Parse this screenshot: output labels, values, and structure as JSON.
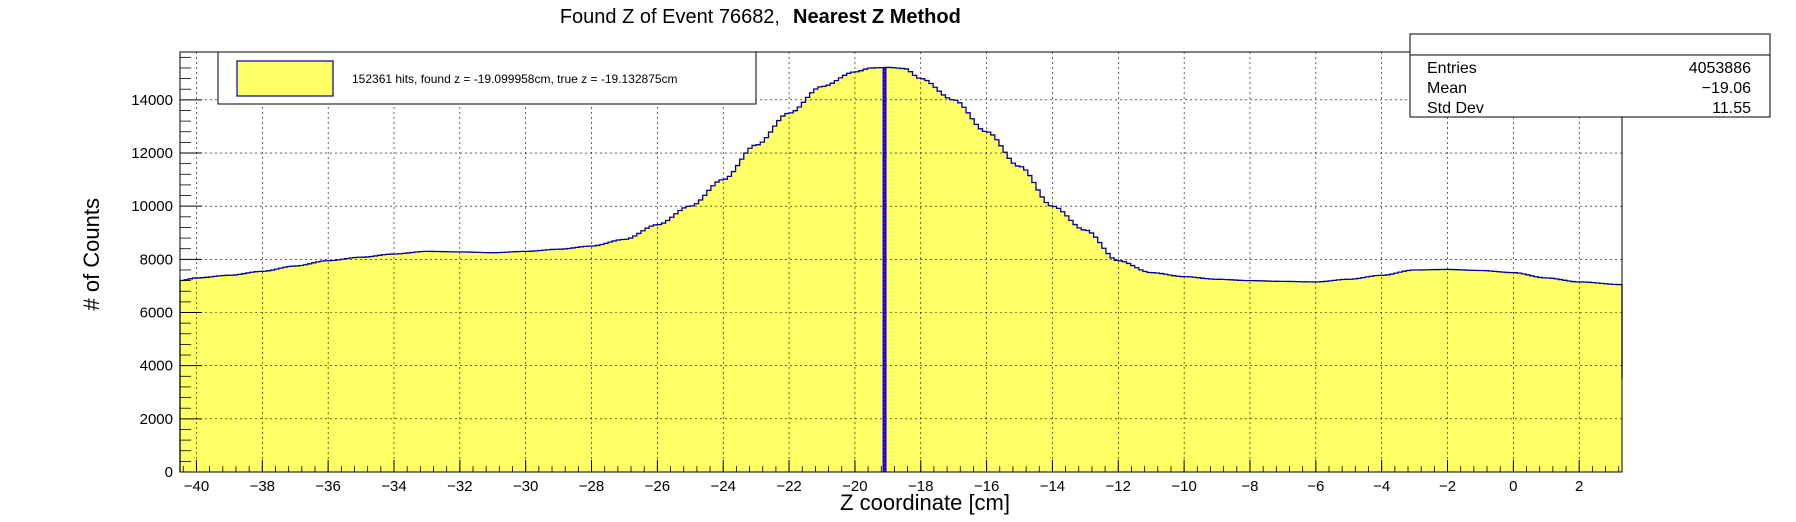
{
  "colors": {
    "fill": "#ffff66",
    "outline": "#000099",
    "marker": "#0000ff",
    "marker_inner": "#ff0000",
    "grid": "#000000"
  },
  "chart_data": {
    "type": "area",
    "title": "Found Z of Event 76682,",
    "title_bold": "Nearest Z Method",
    "xlabel": "Z coordinate [cm]",
    "ylabel": "# of Counts",
    "xlim": [
      -40.5,
      3.3
    ],
    "ylim": [
      0,
      15800
    ],
    "grid": true,
    "xticks": [
      -40,
      -38,
      -36,
      -34,
      -32,
      -30,
      -28,
      -26,
      -24,
      -22,
      -20,
      -18,
      -16,
      -14,
      -12,
      -10,
      -8,
      -6,
      -4,
      -2,
      0,
      2
    ],
    "yticks": [
      0,
      2000,
      4000,
      6000,
      8000,
      10000,
      12000,
      14000
    ],
    "marker_line_z": -19.1,
    "legend": {
      "placement": "top-left",
      "entry": "152361 hits, found z = -19.099958cm, true z = -19.132875cm"
    },
    "stats": {
      "entries_label": "Entries",
      "entries": "4053886",
      "mean_label": "Mean",
      "mean": "−19.06",
      "stddev_label": "Std Dev",
      "stddev": "11.55"
    },
    "series": [
      {
        "x": [
          -40.5,
          -40.0,
          -39.0,
          -38.0,
          -37.0,
          -36.0,
          -35.0,
          -34.0,
          -33.0,
          -32.0,
          -31.0,
          -30.0,
          -29.0,
          -28.0,
          -27.0,
          -26.0,
          -25.0,
          -24.0,
          -23.0,
          -22.0,
          -21.0,
          -20.0,
          -19.5,
          -19.0,
          -18.5,
          -18.0,
          -17.0,
          -16.0,
          -15.0,
          -14.0,
          -13.0,
          -12.0,
          -11.0,
          -10.0,
          -9.0,
          -8.0,
          -7.0,
          -6.0,
          -5.0,
          -4.0,
          -3.0,
          -2.0,
          -1.0,
          0.0,
          1.0,
          2.0,
          3.3
        ],
        "y": [
          7200,
          7300,
          7400,
          7550,
          7750,
          7950,
          8080,
          8200,
          8300,
          8280,
          8250,
          8300,
          8380,
          8500,
          8750,
          9300,
          10000,
          11000,
          12300,
          13500,
          14500,
          15050,
          15200,
          15220,
          15180,
          14800,
          14000,
          12800,
          11500,
          10000,
          9100,
          7950,
          7500,
          7350,
          7250,
          7200,
          7170,
          7150,
          7250,
          7400,
          7600,
          7620,
          7580,
          7500,
          7300,
          7150,
          7050
        ]
      }
    ]
  }
}
